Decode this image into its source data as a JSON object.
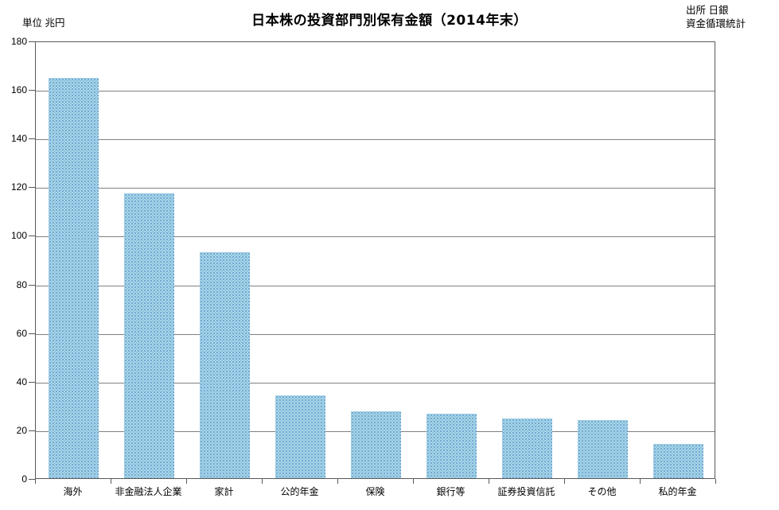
{
  "header": {
    "title": "日本株の投資部門別保有金額（2014年末）",
    "unit_label": "単位 兆円",
    "source_line1": "出所 日銀",
    "source_line2": "資金循環統計"
  },
  "chart_data": {
    "type": "bar",
    "title": "日本株の投資部門別保有金額（2014年末）",
    "unit": "兆円",
    "source": "出所 日銀 資金循環統計",
    "categories": [
      "海外",
      "非金融法人企業",
      "家計",
      "公的年金",
      "保険",
      "銀行等",
      "証券投資信託",
      "その他",
      "私的年金"
    ],
    "values": [
      164.5,
      117,
      93,
      34,
      27.5,
      26.5,
      24.5,
      24,
      14
    ],
    "xlabel": "",
    "ylabel": "兆円",
    "ylim": [
      0,
      180
    ],
    "yticks": [
      0,
      20,
      40,
      60,
      80,
      100,
      120,
      140,
      160,
      180
    ],
    "grid": true,
    "legend": "none",
    "bar_color": "#a6d7e8",
    "bar_dot_color": "#5082c3",
    "gridline_color": "#808080",
    "axis_color": "#595959",
    "text_color": "#000000",
    "background_color": "#ffffff"
  }
}
